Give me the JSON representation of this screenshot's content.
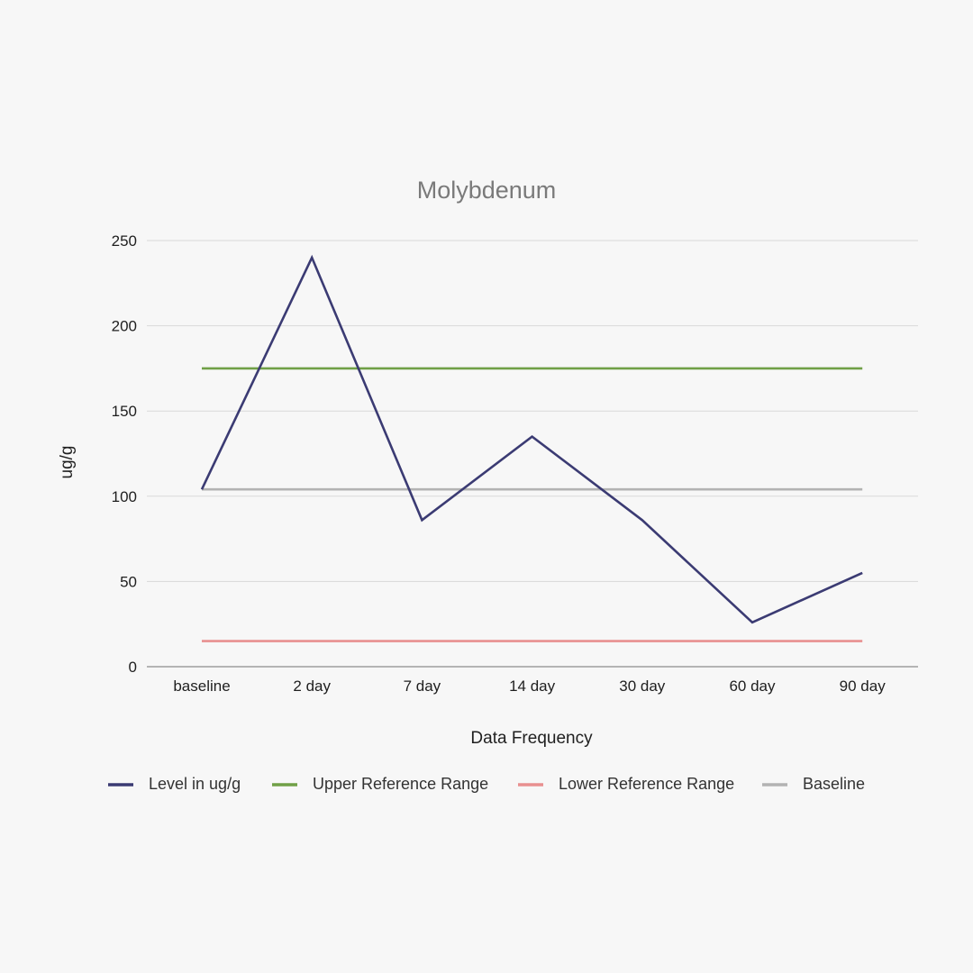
{
  "chart_data": {
    "type": "line",
    "title": "Molybdenum",
    "xlabel": "Data Frequency",
    "ylabel": "ug/g",
    "categories": [
      "baseline",
      "2 day",
      "7 day",
      "14 day",
      "30 day",
      "60 day",
      "90 day"
    ],
    "ylim": [
      0,
      250
    ],
    "yticks": [
      0,
      50,
      100,
      150,
      200,
      250
    ],
    "grid": true,
    "legend_position": "bottom",
    "series": [
      {
        "name": "Level in ug/g",
        "color": "#3b3b73",
        "values": [
          104,
          240,
          86,
          135,
          86,
          26,
          55
        ]
      },
      {
        "name": "Upper Reference Range",
        "color": "#70a047",
        "values": [
          175,
          175,
          175,
          175,
          175,
          175,
          175
        ]
      },
      {
        "name": "Lower Reference Range",
        "color": "#e89090",
        "values": [
          15,
          15,
          15,
          15,
          15,
          15,
          15
        ]
      },
      {
        "name": "Baseline",
        "color": "#b3b3b3",
        "values": [
          104,
          104,
          104,
          104,
          104,
          104,
          104
        ]
      }
    ],
    "gridline_color": "#d9d9d9",
    "axis_color": "#8c8c8c"
  }
}
